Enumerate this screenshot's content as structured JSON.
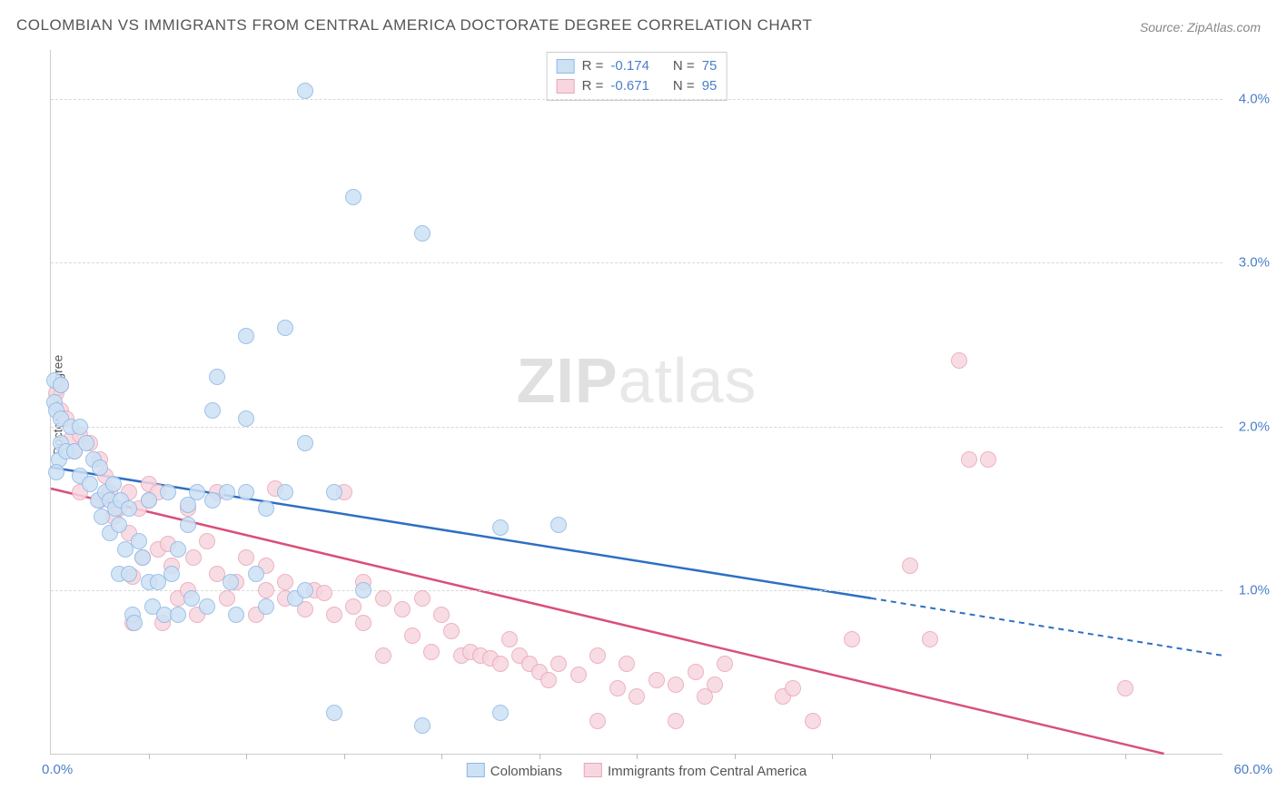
{
  "title": "COLOMBIAN VS IMMIGRANTS FROM CENTRAL AMERICA DOCTORATE DEGREE CORRELATION CHART",
  "source_label": "Source: ZipAtlas.com",
  "ylabel": "Doctorate Degree",
  "watermark_bold": "ZIP",
  "watermark_light": "atlas",
  "chart": {
    "type": "scatter",
    "xlim": [
      0,
      60
    ],
    "ylim": [
      0,
      4.3
    ],
    "x_tick_min": "0.0%",
    "x_tick_max": "60.0%",
    "x_minor_ticks": [
      5,
      10,
      15,
      20,
      25,
      30,
      35,
      40,
      45,
      50,
      55
    ],
    "y_ticks": [
      {
        "v": 1.0,
        "label": "1.0%"
      },
      {
        "v": 2.0,
        "label": "2.0%"
      },
      {
        "v": 3.0,
        "label": "3.0%"
      },
      {
        "v": 4.0,
        "label": "4.0%"
      }
    ],
    "background": "#ffffff",
    "grid_color": "#d8d8d8",
    "axis_color": "#cccccc",
    "tick_label_color": "#4a7fc9",
    "series": [
      {
        "name": "Colombians",
        "fill": "#cde1f5",
        "stroke": "#8fb9e5",
        "line_color": "#2e6fc2",
        "marker_radius": 9,
        "R": "-0.174",
        "N": "75",
        "trend": {
          "x1": 0,
          "y1": 1.75,
          "x2": 42,
          "y2": 0.95,
          "x_dash_end": 60,
          "y_dash_end": 0.6
        },
        "points": [
          [
            0.2,
            2.28
          ],
          [
            0.2,
            2.15
          ],
          [
            0.5,
            2.25
          ],
          [
            0.3,
            2.1
          ],
          [
            0.5,
            2.05
          ],
          [
            0.4,
            1.8
          ],
          [
            0.3,
            1.72
          ],
          [
            0.5,
            1.9
          ],
          [
            0.8,
            1.85
          ],
          [
            1.0,
            2.0
          ],
          [
            1.2,
            1.85
          ],
          [
            1.5,
            2.0
          ],
          [
            1.5,
            1.7
          ],
          [
            1.8,
            1.9
          ],
          [
            2.0,
            1.65
          ],
          [
            2.2,
            1.8
          ],
          [
            2.4,
            1.55
          ],
          [
            2.5,
            1.75
          ],
          [
            2.6,
            1.45
          ],
          [
            2.8,
            1.6
          ],
          [
            3.0,
            1.55
          ],
          [
            3.0,
            1.35
          ],
          [
            3.2,
            1.65
          ],
          [
            3.3,
            1.5
          ],
          [
            3.5,
            1.4
          ],
          [
            3.5,
            1.1
          ],
          [
            3.6,
            1.55
          ],
          [
            3.8,
            1.25
          ],
          [
            4.0,
            1.5
          ],
          [
            4.0,
            1.1
          ],
          [
            4.2,
            0.85
          ],
          [
            4.3,
            0.8
          ],
          [
            4.5,
            1.3
          ],
          [
            4.7,
            1.2
          ],
          [
            5.0,
            1.55
          ],
          [
            5.0,
            1.05
          ],
          [
            5.2,
            0.9
          ],
          [
            5.5,
            1.05
          ],
          [
            5.8,
            0.85
          ],
          [
            6.0,
            1.6
          ],
          [
            6.2,
            1.1
          ],
          [
            6.5,
            1.25
          ],
          [
            6.5,
            0.85
          ],
          [
            7.0,
            1.4
          ],
          [
            7.0,
            1.52
          ],
          [
            7.2,
            0.95
          ],
          [
            7.5,
            1.6
          ],
          [
            8.0,
            0.9
          ],
          [
            8.3,
            1.55
          ],
          [
            8.3,
            2.1
          ],
          [
            8.5,
            2.3
          ],
          [
            9.0,
            1.6
          ],
          [
            9.2,
            1.05
          ],
          [
            9.5,
            0.85
          ],
          [
            10.0,
            1.6
          ],
          [
            10.0,
            2.05
          ],
          [
            10.0,
            2.55
          ],
          [
            10.5,
            1.1
          ],
          [
            11.0,
            0.9
          ],
          [
            11.0,
            1.5
          ],
          [
            12.0,
            1.6
          ],
          [
            12.0,
            2.6
          ],
          [
            12.5,
            0.95
          ],
          [
            13.0,
            1.0
          ],
          [
            13.0,
            4.05
          ],
          [
            13.0,
            1.9
          ],
          [
            14.5,
            1.6
          ],
          [
            14.5,
            0.25
          ],
          [
            15.5,
            3.4
          ],
          [
            16.0,
            1.0
          ],
          [
            19.0,
            3.18
          ],
          [
            19.0,
            0.17
          ],
          [
            23.0,
            0.25
          ],
          [
            23.0,
            1.38
          ],
          [
            26.0,
            1.4
          ]
        ]
      },
      {
        "name": "Immigrants from Central America",
        "fill": "#f7d7df",
        "stroke": "#eaa5b8",
        "line_color": "#d95078",
        "marker_radius": 9,
        "R": "-0.671",
        "N": "95",
        "trend": {
          "x1": 0,
          "y1": 1.62,
          "x2": 57,
          "y2": 0.0
        },
        "points": [
          [
            0.3,
            2.2
          ],
          [
            0.5,
            2.1
          ],
          [
            0.5,
            2.25
          ],
          [
            0.8,
            2.05
          ],
          [
            1.0,
            1.92
          ],
          [
            1.2,
            1.85
          ],
          [
            1.5,
            1.95
          ],
          [
            1.5,
            1.6
          ],
          [
            2.0,
            1.9
          ],
          [
            2.5,
            1.55
          ],
          [
            2.5,
            1.8
          ],
          [
            2.8,
            1.7
          ],
          [
            3.0,
            1.6
          ],
          [
            3.2,
            1.45
          ],
          [
            3.5,
            1.5
          ],
          [
            4.0,
            1.35
          ],
          [
            4.0,
            1.6
          ],
          [
            4.2,
            1.08
          ],
          [
            4.2,
            0.8
          ],
          [
            4.5,
            1.5
          ],
          [
            4.7,
            1.2
          ],
          [
            5.0,
            1.65
          ],
          [
            5.0,
            1.55
          ],
          [
            5.5,
            1.25
          ],
          [
            5.5,
            1.6
          ],
          [
            5.7,
            0.8
          ],
          [
            6.0,
            1.28
          ],
          [
            6.2,
            1.15
          ],
          [
            6.5,
            0.95
          ],
          [
            7.0,
            1.5
          ],
          [
            7.0,
            1.0
          ],
          [
            7.3,
            1.2
          ],
          [
            7.5,
            0.85
          ],
          [
            8.0,
            1.3
          ],
          [
            8.5,
            1.1
          ],
          [
            8.5,
            1.6
          ],
          [
            9.0,
            0.95
          ],
          [
            9.5,
            1.05
          ],
          [
            10.0,
            1.2
          ],
          [
            10.5,
            0.85
          ],
          [
            11.0,
            1.0
          ],
          [
            11.0,
            1.15
          ],
          [
            11.5,
            1.62
          ],
          [
            12.0,
            0.95
          ],
          [
            12.0,
            1.05
          ],
          [
            13.0,
            0.88
          ],
          [
            13.5,
            1.0
          ],
          [
            14.0,
            0.98
          ],
          [
            14.5,
            0.85
          ],
          [
            15.0,
            1.6
          ],
          [
            15.5,
            0.9
          ],
          [
            16.0,
            0.8
          ],
          [
            16.0,
            1.05
          ],
          [
            17.0,
            0.95
          ],
          [
            17.0,
            0.6
          ],
          [
            18.0,
            0.88
          ],
          [
            18.5,
            0.72
          ],
          [
            19.0,
            0.95
          ],
          [
            19.5,
            0.62
          ],
          [
            20.0,
            0.85
          ],
          [
            20.5,
            0.75
          ],
          [
            21.0,
            0.6
          ],
          [
            21.5,
            0.62
          ],
          [
            22.0,
            0.6
          ],
          [
            22.5,
            0.58
          ],
          [
            23.0,
            0.55
          ],
          [
            23.5,
            0.7
          ],
          [
            24.0,
            0.6
          ],
          [
            24.5,
            0.55
          ],
          [
            25.0,
            0.5
          ],
          [
            25.5,
            0.45
          ],
          [
            26.0,
            0.55
          ],
          [
            27.0,
            0.48
          ],
          [
            28.0,
            0.2
          ],
          [
            28.0,
            0.6
          ],
          [
            29.0,
            0.4
          ],
          [
            29.5,
            0.55
          ],
          [
            30.0,
            0.35
          ],
          [
            31.0,
            0.45
          ],
          [
            32.0,
            0.42
          ],
          [
            32.0,
            0.2
          ],
          [
            33.0,
            0.5
          ],
          [
            33.5,
            0.35
          ],
          [
            34.0,
            0.42
          ],
          [
            34.5,
            0.55
          ],
          [
            37.5,
            0.35
          ],
          [
            38.0,
            0.4
          ],
          [
            39.0,
            0.2
          ],
          [
            41.0,
            0.7
          ],
          [
            44.0,
            1.15
          ],
          [
            45.0,
            0.7
          ],
          [
            46.5,
            2.4
          ],
          [
            47.0,
            1.8
          ],
          [
            48.0,
            1.8
          ],
          [
            55.0,
            0.4
          ]
        ]
      }
    ]
  },
  "legend_top_labels": {
    "R": "R =",
    "N": "N ="
  },
  "legend_bottom": [
    {
      "label": "Colombians"
    },
    {
      "label": "Immigrants from Central America"
    }
  ]
}
